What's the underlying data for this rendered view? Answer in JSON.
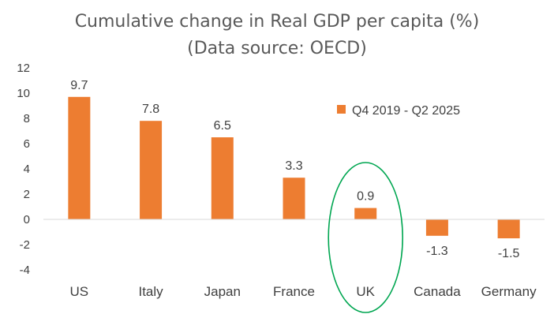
{
  "chart_data": {
    "type": "bar",
    "title": "Cumulative change in Real GDP per capita (%)",
    "subtitle": "(Data source: OECD)",
    "categories": [
      "US",
      "Italy",
      "Japan",
      "France",
      "UK",
      "Canada",
      "Germany"
    ],
    "series": [
      {
        "name": "Q4 2019 - Q2 2025",
        "values": [
          9.7,
          7.8,
          6.5,
          3.3,
          0.9,
          -1.3,
          -1.5
        ],
        "data_labels": [
          "9.7",
          "7.8",
          "6.5",
          "3.3",
          "0.9",
          "-1.3",
          "-1.5"
        ]
      }
    ],
    "y_ticks": [
      "12",
      "10",
      "8",
      "6",
      "4",
      "2",
      "0",
      "-2",
      "-4"
    ],
    "ylim": [
      -4,
      12
    ],
    "y_step": 2,
    "grid": false,
    "legend_position": "upper-right",
    "highlight": {
      "category": "UK",
      "shape": "ellipse"
    },
    "xlabel": "",
    "ylabel": ""
  },
  "colors": {
    "bar": "#ED7D31",
    "highlight": "#00A651",
    "text": "#404040",
    "title": "#595959",
    "axis": "#D9D9D9"
  }
}
